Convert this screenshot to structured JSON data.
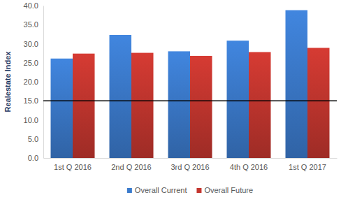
{
  "chart_data": {
    "type": "bar",
    "y_label": "Realestate Index",
    "categories": [
      "1st Q 2016",
      "2nd Q 2016",
      "3rd Q 2016",
      "4th Q 2016",
      "1st Q 2017"
    ],
    "series": [
      {
        "name": "Overall Current",
        "color": "#3b7bcc",
        "values": [
          26.1,
          32.3,
          28.0,
          30.8,
          38.8
        ]
      },
      {
        "name": "Overall Future",
        "color": "#c4362f",
        "values": [
          27.4,
          27.6,
          26.8,
          27.8,
          28.9
        ]
      }
    ],
    "reference_line": 15,
    "ylim": [
      0,
      40
    ],
    "yticks": [
      {
        "value": 0,
        "label": "0.0"
      },
      {
        "value": 5,
        "label": "5.0"
      },
      {
        "value": 10,
        "label": "10.0"
      },
      {
        "value": 15,
        "label": "15.0"
      },
      {
        "value": 20,
        "label": "20.0"
      },
      {
        "value": 25,
        "label": "25.0"
      },
      {
        "value": 30,
        "label": "30.0"
      },
      {
        "value": 35,
        "label": "35.0"
      },
      {
        "value": 40,
        "label": "40.0"
      }
    ],
    "grid": false,
    "legend": "bottom"
  }
}
